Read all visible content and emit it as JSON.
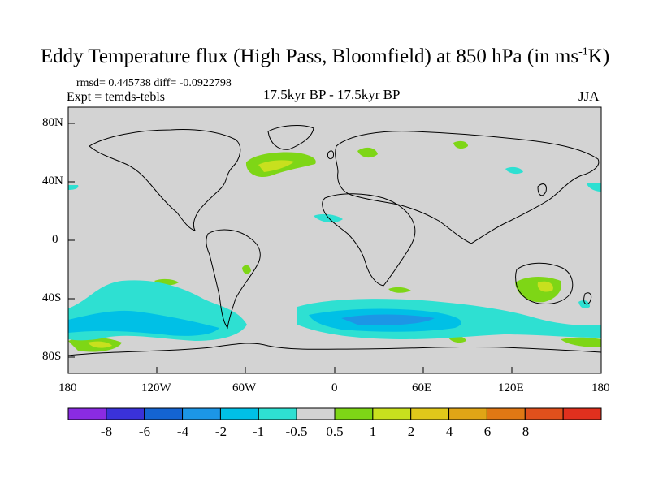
{
  "title": {
    "main": "Eddy Temperature flux (High Pass, Bloomfield) at 850 hPa (in ms",
    "sup": "-1",
    "end": "K)"
  },
  "stats": "rmsd= 0.445738 diff= -0.0922798",
  "expt": "Expt = temds-tebls",
  "period": "17.5kyr BP - 17.5kyr BP",
  "season": "JJA",
  "lat_labels": [
    "80N",
    "40N",
    "0",
    "40S",
    "80S"
  ],
  "lon_labels": [
    "180",
    "120W",
    "60W",
    "0",
    "60E",
    "120E",
    "180"
  ],
  "colorbar": {
    "colors": [
      "#8a2be2",
      "#3a32d9",
      "#1464d2",
      "#1c96e6",
      "#00c0e6",
      "#2ee0d2",
      "#d3d3d3",
      "#7ed616",
      "#c8e01e",
      "#e0c81a",
      "#e0a516",
      "#e07814",
      "#e0501c",
      "#e0301e"
    ],
    "labels": [
      "-8",
      "-6",
      "-4",
      "-2",
      "-1",
      "-0.5",
      "0.5",
      "1",
      "2",
      "4",
      "6",
      "8"
    ]
  },
  "colors": {
    "background_field": "#d3d3d3",
    "coast": "#000000"
  }
}
